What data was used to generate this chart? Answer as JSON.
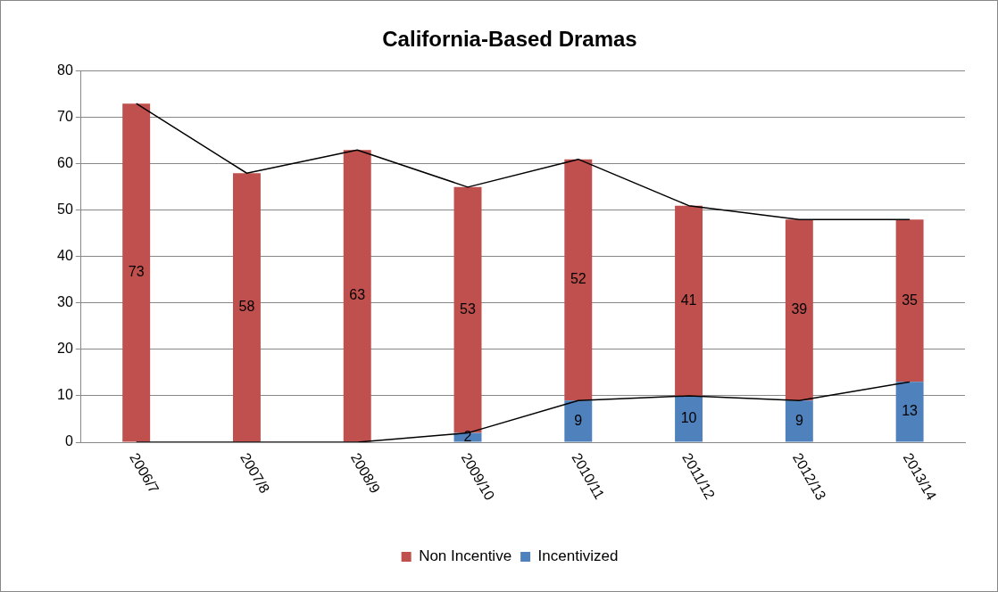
{
  "chart_data": {
    "type": "bar",
    "title": "California-Based Dramas",
    "stacked": true,
    "categories": [
      "2006/7",
      "2007/8",
      "2008/9",
      "2009/10",
      "2010/11",
      "2011/12",
      "2012/13",
      "2013/14"
    ],
    "ylim": [
      0,
      80
    ],
    "yticks": [
      0,
      10,
      20,
      30,
      40,
      50,
      60,
      70,
      80
    ],
    "grid": "y",
    "legend": "bottom",
    "marker": "none",
    "line_style": "solid",
    "series": [
      {
        "name": "Incentivized",
        "color": "#4f81bd",
        "values": [
          0,
          0,
          0,
          2,
          9,
          10,
          9,
          13
        ],
        "value_labels": [
          null,
          null,
          null,
          "2",
          "9",
          "10",
          "9",
          "13"
        ]
      },
      {
        "name": "Non Incentive",
        "color": "#c0504d",
        "values": [
          73,
          58,
          63,
          53,
          52,
          41,
          39,
          35
        ],
        "value_labels": [
          "73",
          "58",
          "63",
          "53",
          "52",
          "41",
          "39",
          "35"
        ]
      },
      {
        "type": "line",
        "color": "#000000",
        "values": [
          73,
          58,
          63,
          55,
          61,
          51,
          48,
          48
        ]
      },
      {
        "type": "line",
        "color": "#000000",
        "values": [
          0,
          0,
          0,
          2,
          9,
          10,
          9,
          13
        ]
      }
    ]
  }
}
